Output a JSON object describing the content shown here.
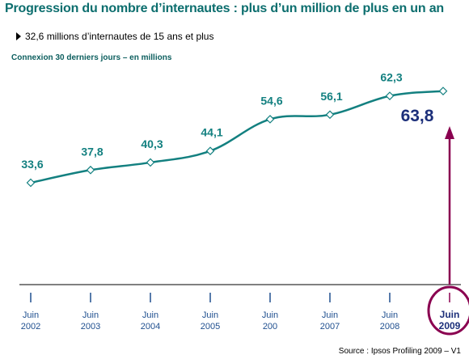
{
  "title": "Progression du nombre d’internautes : plus d’un million de plus en un an",
  "subtitle": "32,6 millions d’internautes de 15 ans et plus",
  "caption": "Connexion 30 derniers jours – en millions",
  "source": "Source : Ipsos Profiling 2009 – V1",
  "colors": {
    "line": "#138080",
    "highlight": "#8a0050",
    "final": "#1c2f7a"
  },
  "chart_data": {
    "type": "line",
    "title": "Progression du nombre d’internautes : plus d’un million de plus en un an",
    "ylabel": "",
    "xlabel": "",
    "categories": [
      [
        "Juin",
        "2002"
      ],
      [
        "Juin",
        "2003"
      ],
      [
        "Juin",
        "2004"
      ],
      [
        "Juin",
        "2005"
      ],
      [
        "Juin",
        "200"
      ],
      [
        "Juin",
        "2007"
      ],
      [
        "Juin",
        "2008"
      ],
      [
        "Juin",
        "2009"
      ]
    ],
    "values": [
      33.6,
      37.8,
      40.3,
      44.1,
      54.6,
      56.1,
      62.3,
      63.8
    ],
    "value_labels": [
      "33,6",
      "37,8",
      "40,3",
      "44,1",
      "54,6",
      "56,1",
      "62,3",
      "63,8"
    ],
    "ylim": [
      0,
      70
    ],
    "grid": false,
    "highlight_category": "Juin 2009"
  }
}
